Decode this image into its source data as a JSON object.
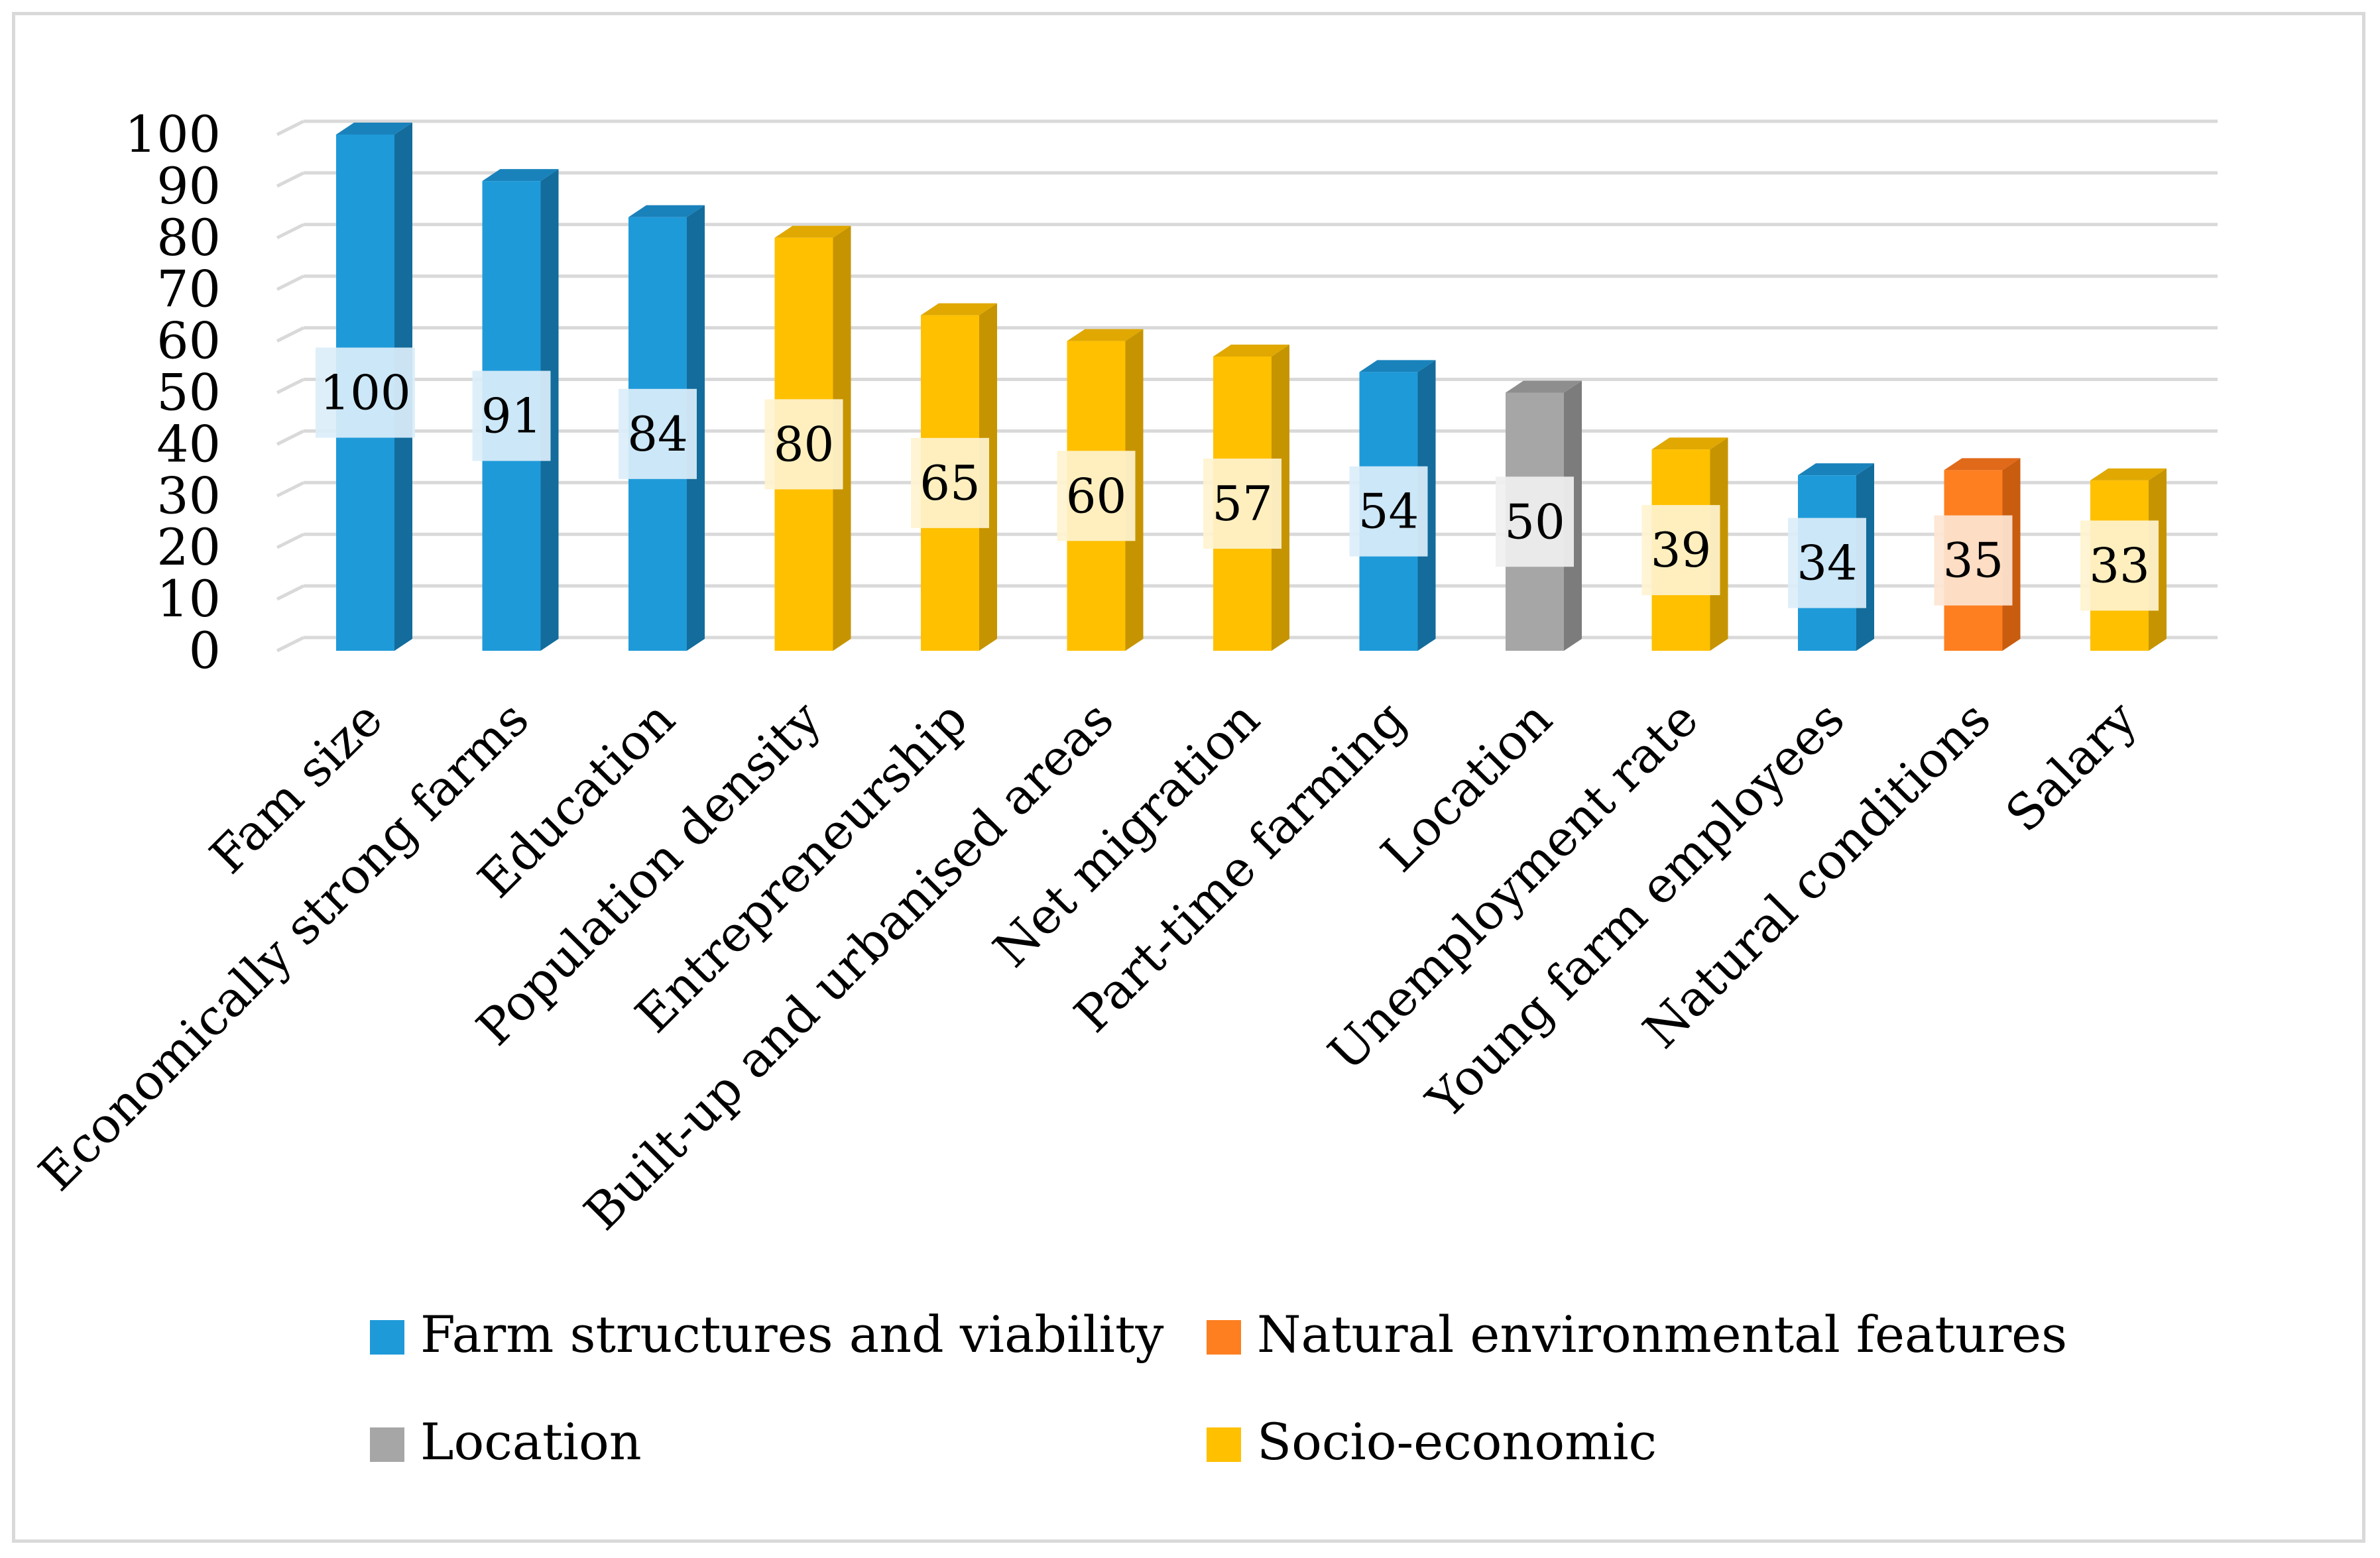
{
  "chart_data": {
    "type": "bar",
    "title": "",
    "xlabel": "",
    "ylabel": "",
    "ylim": [
      0,
      100
    ],
    "yticks": [
      0,
      10,
      20,
      30,
      40,
      50,
      60,
      70,
      80,
      90,
      100
    ],
    "categories": [
      "Fam size",
      "Economically strong farms",
      "Education",
      "Population density",
      "Entrepreneurship",
      "Built-up and urbanised areas",
      "Net migration",
      "Part-time farming",
      "Location",
      "Unemployment rate",
      "Young farm employees",
      "Natural conditions",
      "Salary"
    ],
    "values": [
      100,
      91,
      84,
      80,
      65,
      60,
      57,
      54,
      50,
      39,
      34,
      35,
      33
    ],
    "groups": [
      "farm",
      "farm",
      "farm",
      "socio",
      "socio",
      "socio",
      "socio",
      "farm",
      "location",
      "socio",
      "farm",
      "natural",
      "socio"
    ],
    "legend": [
      {
        "key": "farm",
        "label": "Farm structures and viability",
        "color": "#1f9ad9",
        "side": "#136c9b",
        "top": "#1a82bb",
        "label_bg": "#dbeefa"
      },
      {
        "key": "natural",
        "label": "Natural environmental features",
        "color": "#fd7f20",
        "side": "#c85c0f",
        "top": "#e0691a",
        "label_bg": "#fde5d3"
      },
      {
        "key": "location",
        "label": "Location",
        "color": "#a6a6a6",
        "side": "#7c7c7c",
        "top": "#8e8e8e",
        "label_bg": "#f0f0f0"
      },
      {
        "key": "socio",
        "label": "Socio-economic",
        "color": "#ffc000",
        "side": "#c69400",
        "top": "#e0a800",
        "label_bg": "#fff3cf"
      }
    ],
    "legend_position": "bottom",
    "grid": true
  }
}
